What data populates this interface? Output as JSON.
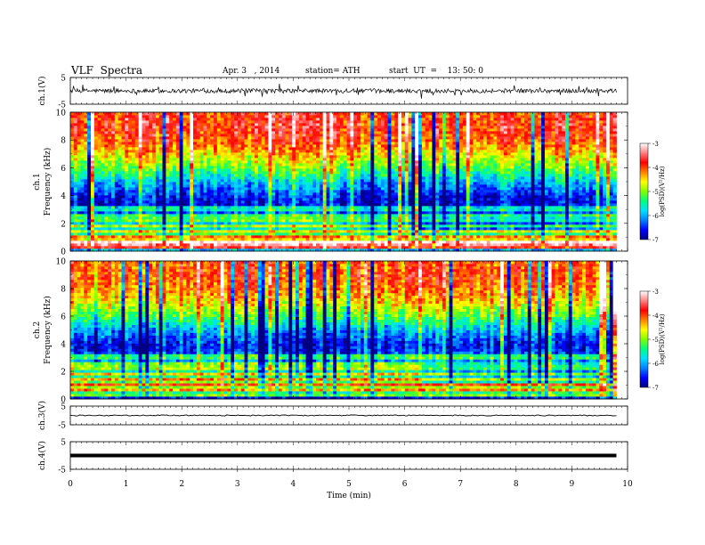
{
  "header": {
    "title": "VLF  Spectra",
    "date": "Apr. 3   , 2014",
    "station": "station= ATH",
    "start": "start  UT  =    13: 50: 0"
  },
  "chart_data": [
    {
      "type": "line",
      "panel": "ch1-waveform",
      "ylabel": "ch.1(V)",
      "yticks": [
        "5",
        "-5"
      ],
      "ylim": [
        -5,
        5
      ],
      "xlim": [
        0,
        10
      ],
      "x_end": 9.8,
      "baseline": 0,
      "note": "noisy waveform"
    },
    {
      "type": "heatmap",
      "panel": "ch1-spectrogram",
      "ylabel": "ch.1",
      "ylabel2": "Frequency  (kHz)",
      "yticks": [
        "0",
        "2",
        "4",
        "6",
        "8",
        "10"
      ],
      "ylim": [
        0,
        10
      ],
      "xlim": [
        0,
        10
      ],
      "x_end": 9.8,
      "colorbar": {
        "label": "log(PSD)(V²/Hz)",
        "ticks": [
          "-3",
          "-4",
          "-5",
          "-6",
          "-7"
        ],
        "range": [
          -7,
          -3
        ],
        "colors": [
          "#000080",
          "#0000ff",
          "#0080ff",
          "#00e0ff",
          "#00ff80",
          "#80ff00",
          "#ffff00",
          "#ff8000",
          "#ff0000",
          "#ff8080",
          "#ffffff"
        ]
      },
      "band_profile": [
        {
          "f": 0.0,
          "v": -6.6
        },
        {
          "f": 0.5,
          "v": -3.2
        },
        {
          "f": 1.0,
          "v": -5.0
        },
        {
          "f": 1.5,
          "v": -5.6
        },
        {
          "f": 2.0,
          "v": -5.8
        },
        {
          "f": 2.5,
          "v": -6.2
        },
        {
          "f": 3.0,
          "v": -6.5
        },
        {
          "f": 3.5,
          "v": -6.7
        },
        {
          "f": 4.0,
          "v": -6.5
        },
        {
          "f": 5.0,
          "v": -5.9
        },
        {
          "f": 6.0,
          "v": -5.1
        },
        {
          "f": 7.0,
          "v": -4.5
        },
        {
          "f": 8.0,
          "v": -4.0
        },
        {
          "f": 9.0,
          "v": -3.8
        },
        {
          "f": 10.0,
          "v": -3.9
        }
      ]
    },
    {
      "type": "heatmap",
      "panel": "ch2-spectrogram",
      "ylabel": "ch.2",
      "ylabel2": "Frequency  (kHz)",
      "yticks": [
        "0",
        "2",
        "4",
        "6",
        "8",
        "10"
      ],
      "ylim": [
        0,
        10
      ],
      "xlim": [
        0,
        10
      ],
      "x_end": 9.8,
      "colorbar": {
        "label": "log(PSD)(V²/Hz)",
        "ticks": [
          "-3",
          "-4",
          "-5",
          "-6",
          "-7"
        ],
        "range": [
          -7,
          -3
        ],
        "colors": [
          "#000080",
          "#0000ff",
          "#0080ff",
          "#00e0ff",
          "#00ff80",
          "#80ff00",
          "#ffff00",
          "#ff8000",
          "#ff0000",
          "#ff8080",
          "#ffffff"
        ]
      },
      "band_profile": [
        {
          "f": 0.0,
          "v": -6.8
        },
        {
          "f": 0.5,
          "v": -5.3
        },
        {
          "f": 1.0,
          "v": -4.8
        },
        {
          "f": 1.5,
          "v": -5.2
        },
        {
          "f": 2.0,
          "v": -5.5
        },
        {
          "f": 2.5,
          "v": -5.9
        },
        {
          "f": 3.0,
          "v": -6.2
        },
        {
          "f": 3.5,
          "v": -6.5
        },
        {
          "f": 4.0,
          "v": -6.6
        },
        {
          "f": 5.0,
          "v": -6.0
        },
        {
          "f": 6.0,
          "v": -5.2
        },
        {
          "f": 7.0,
          "v": -4.6
        },
        {
          "f": 8.0,
          "v": -4.2
        },
        {
          "f": 9.0,
          "v": -4.0
        },
        {
          "f": 10.0,
          "v": -4.1
        }
      ]
    },
    {
      "type": "line",
      "panel": "ch3-waveform",
      "ylabel": "ch.3(V)",
      "yticks": [
        "5",
        "-5"
      ],
      "ylim": [
        -5,
        5
      ],
      "xlim": [
        0,
        10
      ],
      "x_end": 9.8,
      "baseline": 0,
      "note": "flat trace"
    },
    {
      "type": "line",
      "panel": "ch4-waveform",
      "ylabel": "ch.4(V)",
      "yticks": [
        "5",
        "-5"
      ],
      "ylim": [
        -5,
        5
      ],
      "xlim": [
        0,
        10
      ],
      "x_end": 9.8,
      "baseline": 0,
      "note": "thick flat trace"
    }
  ],
  "xaxis": {
    "label": "Time  (min)",
    "ticks": [
      "0",
      "1",
      "2",
      "3",
      "4",
      "5",
      "6",
      "7",
      "8",
      "9",
      "10"
    ]
  }
}
